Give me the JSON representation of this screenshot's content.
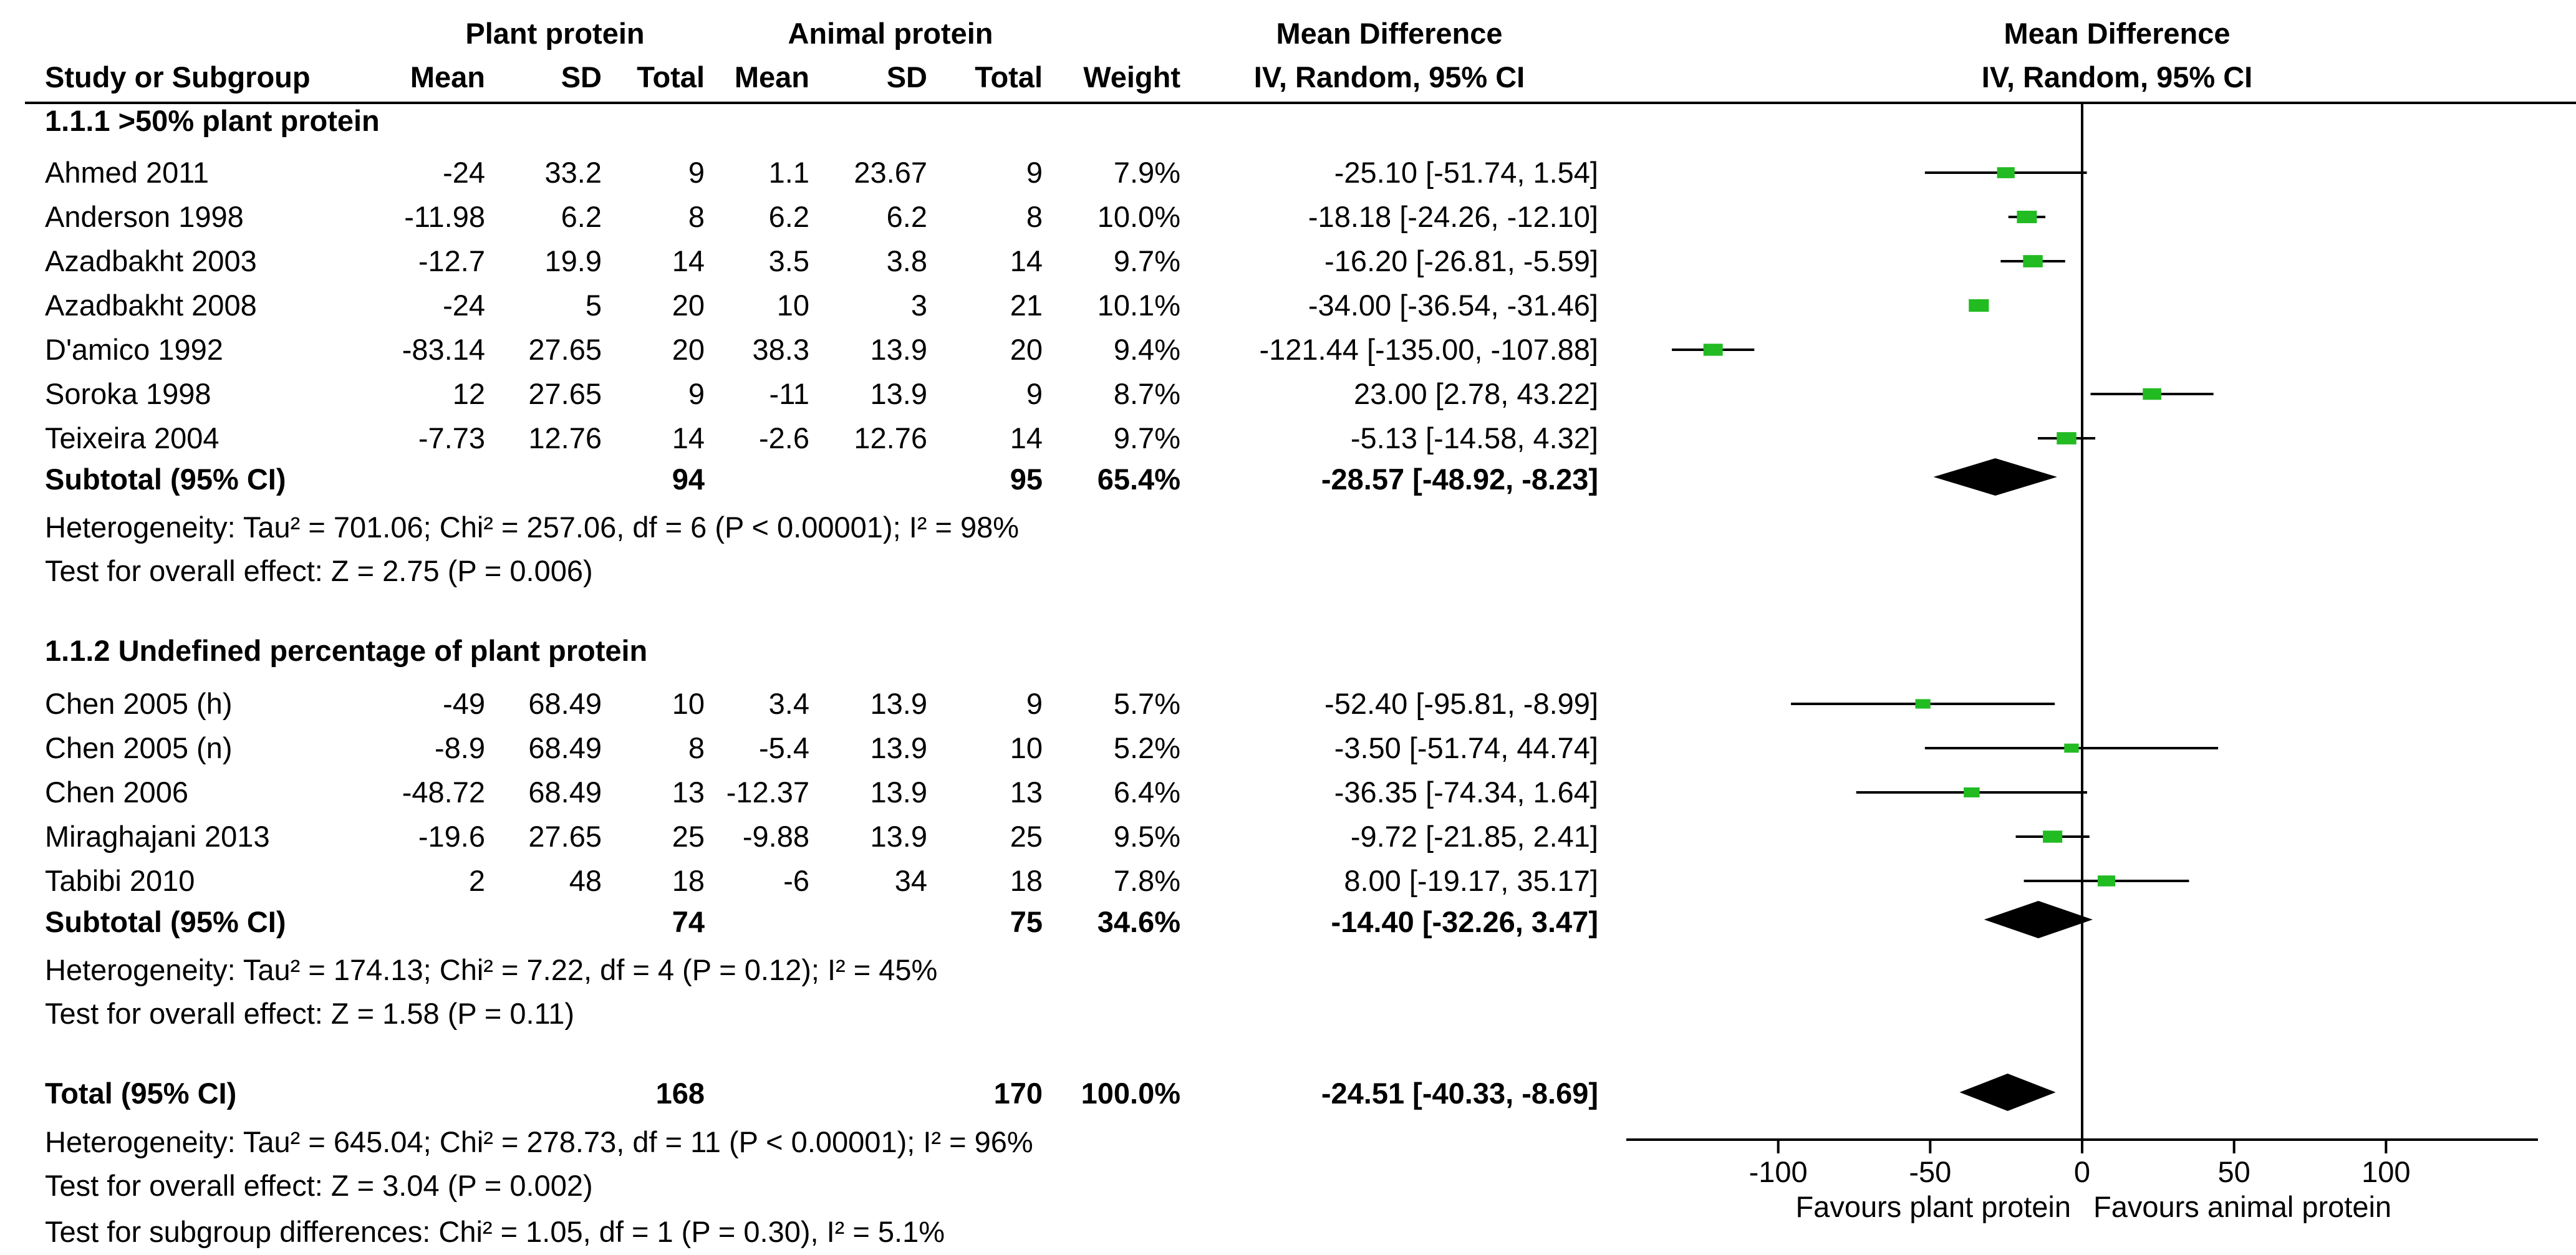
{
  "headers": {
    "plant_group": "Plant protein",
    "animal_group": "Animal protein",
    "md_group": "Mean Difference",
    "md_method": "IV, Random, 95% CI",
    "plot_group": "Mean Difference",
    "plot_method": "IV, Random, 95% CI",
    "study": "Study or Subgroup",
    "mean": "Mean",
    "sd": "SD",
    "total": "Total",
    "weight": "Weight"
  },
  "subgroups": [
    {
      "title": "1.1.1 >50% plant protein",
      "studies": [
        {
          "name": "Ahmed 2011",
          "plant_mean": "-24",
          "plant_sd": "33.2",
          "plant_total": "9",
          "animal_mean": "1.1",
          "animal_sd": "23.67",
          "animal_total": "9",
          "weight": "7.9%",
          "ci_text": "-25.10 [-51.74, 1.54]"
        },
        {
          "name": "Anderson 1998",
          "plant_mean": "-11.98",
          "plant_sd": "6.2",
          "plant_total": "8",
          "animal_mean": "6.2",
          "animal_sd": "6.2",
          "animal_total": "8",
          "weight": "10.0%",
          "ci_text": "-18.18 [-24.26, -12.10]"
        },
        {
          "name": "Azadbakht 2003",
          "plant_mean": "-12.7",
          "plant_sd": "19.9",
          "plant_total": "14",
          "animal_mean": "3.5",
          "animal_sd": "3.8",
          "animal_total": "14",
          "weight": "9.7%",
          "ci_text": "-16.20 [-26.81, -5.59]"
        },
        {
          "name": "Azadbakht 2008",
          "plant_mean": "-24",
          "plant_sd": "5",
          "plant_total": "20",
          "animal_mean": "10",
          "animal_sd": "3",
          "animal_total": "21",
          "weight": "10.1%",
          "ci_text": "-34.00 [-36.54, -31.46]"
        },
        {
          "name": "D'amico 1992",
          "plant_mean": "-83.14",
          "plant_sd": "27.65",
          "plant_total": "20",
          "animal_mean": "38.3",
          "animal_sd": "13.9",
          "animal_total": "20",
          "weight": "9.4%",
          "ci_text": "-121.44 [-135.00, -107.88]"
        },
        {
          "name": "Soroka 1998",
          "plant_mean": "12",
          "plant_sd": "27.65",
          "plant_total": "9",
          "animal_mean": "-11",
          "animal_sd": "13.9",
          "animal_total": "9",
          "weight": "8.7%",
          "ci_text": "23.00 [2.78, 43.22]"
        },
        {
          "name": "Teixeira 2004",
          "plant_mean": "-7.73",
          "plant_sd": "12.76",
          "plant_total": "14",
          "animal_mean": "-2.6",
          "animal_sd": "12.76",
          "animal_total": "14",
          "weight": "9.7%",
          "ci_text": "-5.13 [-14.58, 4.32]"
        }
      ],
      "subtotal": {
        "label": "Subtotal (95% CI)",
        "plant_total": "94",
        "animal_total": "95",
        "weight": "65.4%",
        "ci_text": "-28.57 [-48.92, -8.23]"
      },
      "heterogeneity": "Heterogeneity: Tau² = 701.06; Chi² = 257.06, df = 6 (P < 0.00001); I² = 98%",
      "overall_effect": "Test for overall effect: Z = 2.75 (P = 0.006)"
    },
    {
      "title": "1.1.2 Undefined percentage of plant protein",
      "studies": [
        {
          "name": "Chen 2005 (h)",
          "plant_mean": "-49",
          "plant_sd": "68.49",
          "plant_total": "10",
          "animal_mean": "3.4",
          "animal_sd": "13.9",
          "animal_total": "9",
          "weight": "5.7%",
          "ci_text": "-52.40 [-95.81, -8.99]"
        },
        {
          "name": "Chen 2005 (n)",
          "plant_mean": "-8.9",
          "plant_sd": "68.49",
          "plant_total": "8",
          "animal_mean": "-5.4",
          "animal_sd": "13.9",
          "animal_total": "10",
          "weight": "5.2%",
          "ci_text": "-3.50 [-51.74, 44.74]"
        },
        {
          "name": "Chen 2006",
          "plant_mean": "-48.72",
          "plant_sd": "68.49",
          "plant_total": "13",
          "animal_mean": "-12.37",
          "animal_sd": "13.9",
          "animal_total": "13",
          "weight": "6.4%",
          "ci_text": "-36.35 [-74.34, 1.64]"
        },
        {
          "name": "Miraghajani 2013",
          "plant_mean": "-19.6",
          "plant_sd": "27.65",
          "plant_total": "25",
          "animal_mean": "-9.88",
          "animal_sd": "13.9",
          "animal_total": "25",
          "weight": "9.5%",
          "ci_text": "-9.72 [-21.85, 2.41]"
        },
        {
          "name": "Tabibi 2010",
          "plant_mean": "2",
          "plant_sd": "48",
          "plant_total": "18",
          "animal_mean": "-6",
          "animal_sd": "34",
          "animal_total": "18",
          "weight": "7.8%",
          "ci_text": "8.00 [-19.17, 35.17]"
        }
      ],
      "subtotal": {
        "label": "Subtotal (95% CI)",
        "plant_total": "74",
        "animal_total": "75",
        "weight": "34.6%",
        "ci_text": "-14.40 [-32.26, 3.47]"
      },
      "heterogeneity": "Heterogeneity: Tau² = 174.13; Chi² = 7.22, df = 4 (P = 0.12); I² = 45%",
      "overall_effect": "Test for overall effect: Z = 1.58 (P = 0.11)"
    }
  ],
  "total": {
    "label": "Total (95% CI)",
    "plant_total": "168",
    "animal_total": "170",
    "weight": "100.0%",
    "ci_text": "-24.51 [-40.33, -8.69]",
    "heterogeneity": "Heterogeneity: Tau² = 645.04; Chi² = 278.73, df = 11 (P < 0.00001); I² = 96%",
    "overall_effect": "Test for overall effect: Z = 3.04 (P = 0.002)",
    "subgroup_diff": "Test for subgroup differences: Chi² = 1.05, df = 1 (P = 0.30), I² = 5.1%"
  },
  "axis": {
    "min": -150,
    "max": 150,
    "ticks": [
      -100,
      -50,
      0,
      50,
      100
    ],
    "tick_labels": [
      "-100",
      "-50",
      "0",
      "50",
      "100"
    ],
    "favours_left": "Favours plant protein",
    "favours_right": "Favours animal protein"
  },
  "colors": {
    "marker": "#22bb22",
    "diamond": "#000000",
    "line": "#000000"
  },
  "chart_data": {
    "type": "forest",
    "x_axis": {
      "ticks": [
        -100,
        -50,
        0,
        50,
        100
      ],
      "range": [
        -150,
        150
      ]
    },
    "studies": [
      {
        "name": "Ahmed 2011",
        "md": -25.1,
        "lo": -51.74,
        "hi": 1.54,
        "weight": 7.9
      },
      {
        "name": "Anderson 1998",
        "md": -18.18,
        "lo": -24.26,
        "hi": -12.1,
        "weight": 10.0
      },
      {
        "name": "Azadbakht 2003",
        "md": -16.2,
        "lo": -26.81,
        "hi": -5.59,
        "weight": 9.7
      },
      {
        "name": "Azadbakht 2008",
        "md": -34.0,
        "lo": -36.54,
        "hi": -31.46,
        "weight": 10.1
      },
      {
        "name": "D'amico 1992",
        "md": -121.44,
        "lo": -135.0,
        "hi": -107.88,
        "weight": 9.4
      },
      {
        "name": "Soroka 1998",
        "md": 23.0,
        "lo": 2.78,
        "hi": 43.22,
        "weight": 8.7
      },
      {
        "name": "Teixeira 2004",
        "md": -5.13,
        "lo": -14.58,
        "hi": 4.32,
        "weight": 9.7
      },
      {
        "name": "Chen 2005 (h)",
        "md": -52.4,
        "lo": -95.81,
        "hi": -8.99,
        "weight": 5.7
      },
      {
        "name": "Chen 2005 (n)",
        "md": -3.5,
        "lo": -51.74,
        "hi": 44.74,
        "weight": 5.2
      },
      {
        "name": "Chen 2006",
        "md": -36.35,
        "lo": -74.34,
        "hi": 1.64,
        "weight": 6.4
      },
      {
        "name": "Miraghajani 2013",
        "md": -9.72,
        "lo": -21.85,
        "hi": 2.41,
        "weight": 9.5
      },
      {
        "name": "Tabibi 2010",
        "md": 8.0,
        "lo": -19.17,
        "hi": 35.17,
        "weight": 7.8
      }
    ],
    "subtotals": [
      {
        "label": "Subtotal 1.1.1",
        "md": -28.57,
        "lo": -48.92,
        "hi": -8.23
      },
      {
        "label": "Subtotal 1.1.2",
        "md": -14.4,
        "lo": -32.26,
        "hi": 3.47
      }
    ],
    "overall": {
      "label": "Total",
      "md": -24.51,
      "lo": -40.33,
      "hi": -8.69
    }
  }
}
